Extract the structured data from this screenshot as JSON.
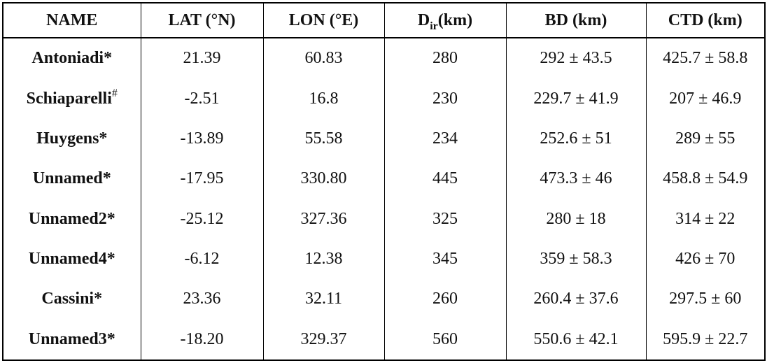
{
  "table": {
    "header": [
      "NAME",
      "LAT (°N)",
      "LON (°E)",
      {
        "text": "D",
        "sub": "ir",
        "rest": "(km)"
      },
      "BD (km)",
      "CTD (km)"
    ],
    "rows": [
      [
        "Antoniadi*",
        "21.39",
        "60.83",
        "280",
        "292 ± 43.5",
        "425.7 ± 58.8"
      ],
      [
        {
          "text": "Schiaparelli",
          "sup": "#"
        },
        "-2.51",
        "16.8",
        "230",
        "229.7 ± 41.9",
        "207 ± 46.9"
      ],
      [
        "Huygens*",
        "-13.89",
        "55.58",
        "234",
        "252.6 ± 51",
        "289 ± 55"
      ],
      [
        "Unnamed*",
        "-17.95",
        "330.80",
        "445",
        "473.3 ± 46",
        "458.8 ± 54.9"
      ],
      [
        "Unnamed2*",
        "-25.12",
        "327.36",
        "325",
        "280 ± 18",
        "314 ± 22"
      ],
      [
        "Unnamed4*",
        "-6.12",
        "12.38",
        "345",
        "359 ± 58.3",
        "426 ± 70"
      ],
      [
        "Cassini*",
        "23.36",
        "32.11",
        "260",
        "260.4 ± 37.6",
        "297.5 ± 60"
      ],
      [
        "Unnamed3*",
        "-18.20",
        "329.37",
        "560",
        "550.6 ± 42.1",
        "595.9 ± 22.7"
      ]
    ]
  }
}
